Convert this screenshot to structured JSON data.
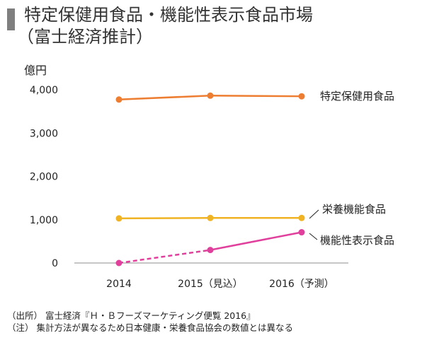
{
  "title": {
    "line1": "特定保健用食品・機能性表示食品市場",
    "line2": "（富士経済推計）"
  },
  "unit_label": "億円",
  "chart_data": {
    "type": "line",
    "title": "特定保健用食品・機能性表示食品市場（富士経済推計）",
    "ylabel": "億円",
    "xlabel": "",
    "categories": [
      "2014",
      "2015（見込）",
      "2016（予測）"
    ],
    "ylim": [
      0,
      4000
    ],
    "yticks": [
      0,
      1000,
      2000,
      3000,
      4000
    ],
    "ytick_labels": [
      "0",
      "1,000",
      "2,000",
      "3,000",
      "4,000"
    ],
    "grid": false,
    "legend": "labels at line ends (right)",
    "series": [
      {
        "name": "特定保健用食品",
        "values": [
          3775,
          3865,
          3850
        ],
        "color": "#ed7d31",
        "style": [
          "solid",
          "solid"
        ]
      },
      {
        "name": "栄養機能食品",
        "values": [
          1030,
          1040,
          1040
        ],
        "color": "#f0b323",
        "style": [
          "solid",
          "solid"
        ]
      },
      {
        "name": "機能性表示食品",
        "values": [
          0,
          300,
          710
        ],
        "color": "#e0409c",
        "style": [
          "dashed",
          "solid"
        ]
      }
    ]
  },
  "notes": [
    "（出所） 富士経済『Ｈ・Ｂフーズマーケティング便覧 2016』",
    "（注） 集計方法が異なるため日本健康・栄養食品協会の数値とは異なる"
  ]
}
